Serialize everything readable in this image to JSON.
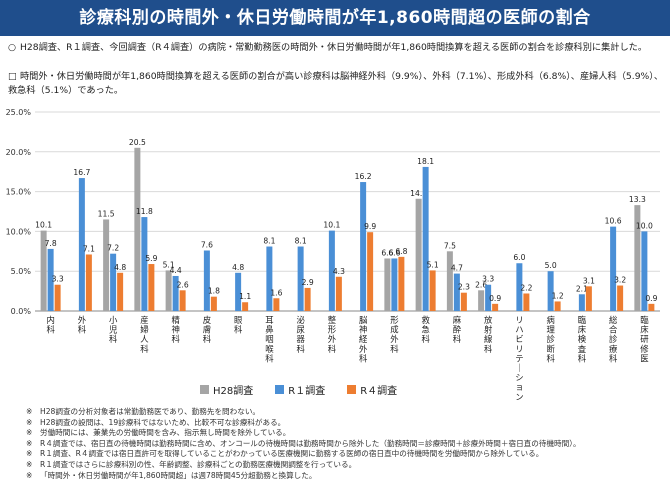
{
  "title": "診療科別の時間外・休日労働時間が年1,860時間超の医師の割合",
  "bullets": [
    {
      "mark": "○",
      "text": "H28調査、R１調査、今回調査（R４調査）の病院・常勤勤務医の時間外・休日労働時間が年1,860時間換算を超える医師の割合を診療科別に集計した。"
    },
    {
      "mark": "□",
      "text": "時間外・休日労働時間が年1,860時間換算を超える医師の割合が高い診療科は脳神経外科（9.9%）、外科（7.1%）、形成外科（6.8%）、産婦人科（5.9%）、救急科（5.1%）であった。"
    }
  ],
  "chart_data": {
    "type": "bar",
    "categories": [
      "内科",
      "外科",
      "小児科",
      "産婦人科",
      "精神科",
      "皮膚科",
      "眼科",
      "耳鼻咽喉科",
      "泌尿器科",
      "整形外科",
      "脳神経外科",
      "形成外科",
      "救急科",
      "麻酔科",
      "放射線科",
      "リハビリテーション科",
      "病理診断科",
      "臨床検査科",
      "総合診療科",
      "臨床研修医"
    ],
    "series": [
      {
        "name": "H28調査",
        "color": "#a5a5a5",
        "values": [
          10.1,
          null,
          11.5,
          20.5,
          5.1,
          null,
          null,
          null,
          null,
          null,
          null,
          6.6,
          14.1,
          7.5,
          2.6,
          null,
          null,
          null,
          null,
          13.3
        ]
      },
      {
        "name": "R１調査",
        "color": "#4a8fd6",
        "values": [
          7.8,
          16.7,
          7.2,
          11.8,
          4.4,
          7.6,
          4.8,
          8.1,
          8.1,
          10.1,
          16.2,
          6.6,
          18.1,
          4.7,
          3.3,
          6.0,
          5.0,
          2.1,
          10.6,
          10.0
        ]
      },
      {
        "name": "R４調査",
        "color": "#ed7d31",
        "values": [
          3.3,
          7.1,
          4.8,
          5.9,
          2.6,
          1.8,
          1.1,
          1.6,
          2.9,
          4.3,
          9.9,
          6.8,
          5.1,
          2.3,
          0.9,
          2.2,
          1.2,
          3.1,
          3.2,
          0.9
        ]
      }
    ],
    "ylim": [
      0,
      25
    ],
    "yticks": [
      "0.0%",
      "5.0%",
      "10.0%",
      "15.0%",
      "20.0%",
      "25.0%"
    ],
    "grid": true,
    "legend": "bottom"
  },
  "footnotes": [
    {
      "mark": "※",
      "text": "H28調査の分析対象者は常勤勤務医であり、勤務先を問わない。"
    },
    {
      "mark": "※",
      "text": "H28調査の設問は、19診療科ではないため、比較不可な診療科がある。"
    },
    {
      "mark": "※",
      "text": "労働時間には、兼業先の労働時間を含み、指示無し時間を除外している。"
    },
    {
      "mark": "※",
      "text": "R４調査では、宿日直の待機時間は勤務時間に含め、オンコールの待機時間は勤務時間から除外した（勤務時間＝診療時間＋診療外時間＋宿日直の待機時間）。"
    },
    {
      "mark": "※",
      "text": "R１調査、R４調査では宿日直許可を取得していることがわかっている医療機関に勤務する医師の宿日直中の待機時間を労働時間から除外している。"
    },
    {
      "mark": "※",
      "text": "R１調査ではさらに診療科別の性、年齢調整、診療科ごとの勤務医療機関調整を行っている。"
    },
    {
      "mark": "※",
      "text": "「時間外・休日労働時間が年1,860時間超」は週78時間45分超勤務と換算した。"
    }
  ]
}
